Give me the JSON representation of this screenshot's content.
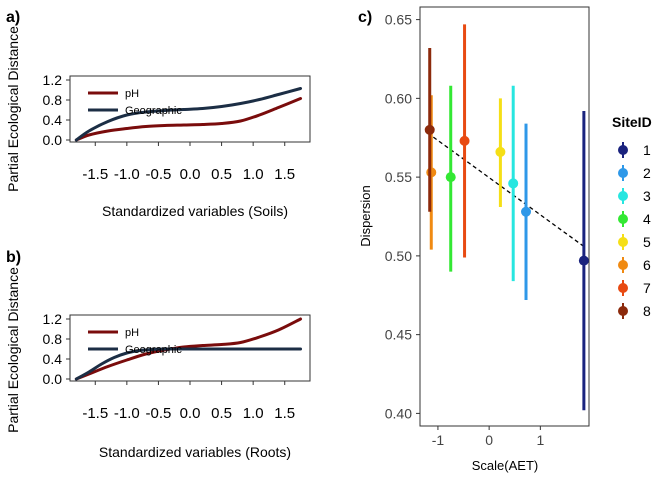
{
  "panels": {
    "a": {
      "label": "a)"
    },
    "b": {
      "label": "b)"
    },
    "c": {
      "label": "c)"
    }
  },
  "chart_data": [
    {
      "id": "a",
      "type": "line",
      "title": "",
      "xlabel": "Standardized variables (Soils)",
      "ylabel": "Partial Ecological Distance",
      "xlim": [
        -1.9,
        1.9
      ],
      "ylim": [
        0.0,
        1.2
      ],
      "xticks": [
        "-1.5",
        "-1.0",
        "-0.5",
        "0.0",
        "0.5",
        "1.0",
        "1.5"
      ],
      "xtick_values": [
        -1.5,
        -1.0,
        -0.5,
        0.0,
        0.5,
        1.0,
        1.5
      ],
      "yticks": [
        "0.0",
        "0.4",
        "0.8",
        "1.2"
      ],
      "ytick_values": [
        0.0,
        0.4,
        0.8,
        1.2
      ],
      "legend": "top-left",
      "grid": false,
      "series": [
        {
          "name": "pH",
          "color": "#7a0c0c",
          "x": [
            -1.8,
            -1.6,
            -1.3,
            -1.0,
            -0.7,
            -0.4,
            -0.1,
            0.2,
            0.5,
            0.8,
            1.1,
            1.4,
            1.75
          ],
          "y": [
            0.0,
            0.1,
            0.18,
            0.23,
            0.27,
            0.29,
            0.3,
            0.31,
            0.33,
            0.38,
            0.5,
            0.65,
            0.83
          ]
        },
        {
          "name": "Geographic",
          "color": "#1c2e45",
          "x": [
            -1.8,
            -1.6,
            -1.3,
            -1.0,
            -0.7,
            -0.4,
            -0.1,
            0.2,
            0.5,
            0.8,
            1.1,
            1.4,
            1.75
          ],
          "y": [
            0.0,
            0.18,
            0.37,
            0.5,
            0.56,
            0.59,
            0.61,
            0.63,
            0.67,
            0.73,
            0.81,
            0.91,
            1.03
          ]
        }
      ]
    },
    {
      "id": "b",
      "type": "line",
      "title": "",
      "xlabel": "Standardized variables (Roots)",
      "ylabel": "Partial Ecological Distance",
      "xlim": [
        -1.9,
        1.9
      ],
      "ylim": [
        0.0,
        1.2
      ],
      "xticks": [
        "-1.5",
        "-1.0",
        "-0.5",
        "0.0",
        "0.5",
        "1.0",
        "1.5"
      ],
      "xtick_values": [
        -1.5,
        -1.0,
        -0.5,
        0.0,
        0.5,
        1.0,
        1.5
      ],
      "yticks": [
        "0.0",
        "0.4",
        "0.8",
        "1.2"
      ],
      "ytick_values": [
        0.0,
        0.4,
        0.8,
        1.2
      ],
      "legend": "top-left",
      "grid": false,
      "series": [
        {
          "name": "pH",
          "color": "#7a0c0c",
          "x": [
            -1.8,
            -1.6,
            -1.3,
            -1.0,
            -0.7,
            -0.4,
            -0.1,
            0.2,
            0.5,
            0.8,
            1.1,
            1.4,
            1.75
          ],
          "y": [
            0.0,
            0.1,
            0.25,
            0.38,
            0.5,
            0.58,
            0.64,
            0.67,
            0.69,
            0.73,
            0.84,
            0.98,
            1.2
          ]
        },
        {
          "name": "Geographic",
          "color": "#1c2e45",
          "x": [
            -1.8,
            -1.6,
            -1.4,
            -1.2,
            -1.0,
            -0.8,
            -0.6,
            -0.4,
            0.0,
            0.5,
            1.0,
            1.75
          ],
          "y": [
            0.0,
            0.14,
            0.3,
            0.43,
            0.52,
            0.57,
            0.59,
            0.6,
            0.6,
            0.6,
            0.6,
            0.6
          ]
        }
      ]
    },
    {
      "id": "c",
      "type": "scatter",
      "title": "",
      "xlabel": "Scale(AET)",
      "ylabel": "Dispersion",
      "xlim": [
        -1.35,
        1.95
      ],
      "ylim": [
        0.392,
        0.658
      ],
      "xticks": [
        "-1",
        "0",
        "1"
      ],
      "xtick_values": [
        -1,
        0,
        1
      ],
      "yticks": [
        "0.40",
        "0.45",
        "0.50",
        "0.55",
        "0.60",
        "0.65"
      ],
      "ytick_values": [
        0.4,
        0.45,
        0.5,
        0.55,
        0.6,
        0.65
      ],
      "grid": false,
      "legend": "right",
      "legend_title": "SiteID",
      "trend_line": {
        "x": [
          -1.2,
          1.85
        ],
        "y": [
          0.578,
          0.506
        ],
        "style": "dashed"
      },
      "points": [
        {
          "site": "1",
          "color": "#1a237e",
          "x": 1.85,
          "y": 0.497,
          "ymin": 0.402,
          "ymax": 0.592
        },
        {
          "site": "2",
          "color": "#2e98e8",
          "x": 0.72,
          "y": 0.528,
          "ymin": 0.472,
          "ymax": 0.584
        },
        {
          "site": "3",
          "color": "#27e6e0",
          "x": 0.47,
          "y": 0.546,
          "ymin": 0.484,
          "ymax": 0.608
        },
        {
          "site": "4",
          "color": "#33e833",
          "x": -0.75,
          "y": 0.55,
          "ymin": 0.49,
          "ymax": 0.608
        },
        {
          "site": "5",
          "color": "#f5df16",
          "x": 0.22,
          "y": 0.566,
          "ymin": 0.531,
          "ymax": 0.6
        },
        {
          "site": "6",
          "color": "#f08a12",
          "x": -1.13,
          "y": 0.553,
          "ymin": 0.504,
          "ymax": 0.602
        },
        {
          "site": "7",
          "color": "#e84a12",
          "x": -0.48,
          "y": 0.573,
          "ymin": 0.499,
          "ymax": 0.647
        },
        {
          "site": "8",
          "color": "#8c2a0c",
          "x": -1.16,
          "y": 0.58,
          "ymin": 0.528,
          "ymax": 0.632
        }
      ]
    }
  ]
}
